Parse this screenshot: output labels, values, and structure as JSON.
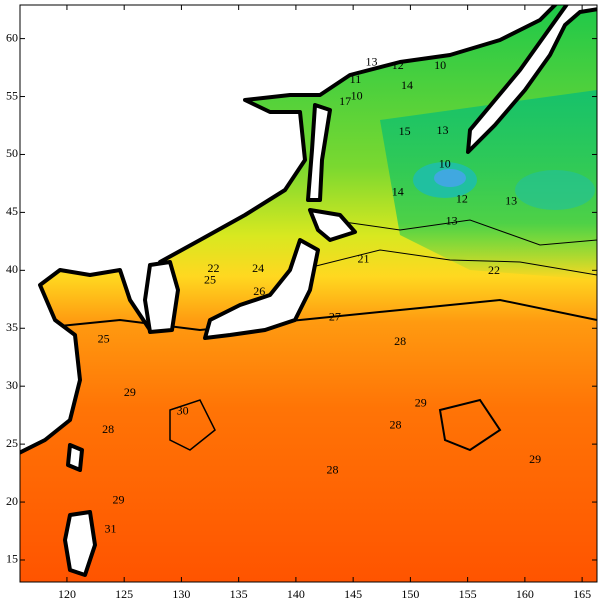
{
  "map": {
    "xlim": [
      115.9,
      166.3
    ],
    "ylim": [
      13.1,
      62.9
    ],
    "xticks": [
      120,
      125,
      130,
      135,
      140,
      145,
      150,
      155,
      160,
      165
    ],
    "yticks": [
      15,
      20,
      25,
      30,
      35,
      40,
      45,
      50,
      55,
      60
    ],
    "contour_labels": [
      {
        "value": 13,
        "lon": 146.6,
        "lat": 57.9
      },
      {
        "value": 12,
        "lon": 148.9,
        "lat": 57.6
      },
      {
        "value": 10,
        "lon": 152.6,
        "lat": 57.6
      },
      {
        "value": 11,
        "lon": 145.2,
        "lat": 56.4
      },
      {
        "value": 10,
        "lon": 145.3,
        "lat": 55.0
      },
      {
        "value": 14,
        "lon": 149.7,
        "lat": 55.9
      },
      {
        "value": 17,
        "lon": 144.3,
        "lat": 54.5
      },
      {
        "value": 15,
        "lon": 149.5,
        "lat": 51.9
      },
      {
        "value": 13,
        "lon": 152.8,
        "lat": 52.0
      },
      {
        "value": 10,
        "lon": 153.0,
        "lat": 49.1
      },
      {
        "value": 12,
        "lon": 154.5,
        "lat": 46.1
      },
      {
        "value": 13,
        "lon": 158.8,
        "lat": 45.9
      },
      {
        "value": 14,
        "lon": 148.9,
        "lat": 46.7
      },
      {
        "value": 13,
        "lon": 153.6,
        "lat": 44.2
      },
      {
        "value": 22,
        "lon": 132.8,
        "lat": 40.1
      },
      {
        "value": 24,
        "lon": 136.7,
        "lat": 40.1
      },
      {
        "value": 25,
        "lon": 132.5,
        "lat": 39.1
      },
      {
        "value": 26,
        "lon": 136.8,
        "lat": 38.1
      },
      {
        "value": 21,
        "lon": 145.9,
        "lat": 40.9
      },
      {
        "value": 22,
        "lon": 157.3,
        "lat": 39.9
      },
      {
        "value": 27,
        "lon": 143.4,
        "lat": 35.9
      },
      {
        "value": 28,
        "lon": 149.1,
        "lat": 33.8
      },
      {
        "value": 25,
        "lon": 123.2,
        "lat": 34.0
      },
      {
        "value": 29,
        "lon": 125.5,
        "lat": 29.4
      },
      {
        "value": 28,
        "lon": 123.6,
        "lat": 26.2
      },
      {
        "value": 30,
        "lon": 130.1,
        "lat": 27.8
      },
      {
        "value": 29,
        "lon": 150.9,
        "lat": 28.5
      },
      {
        "value": 28,
        "lon": 148.7,
        "lat": 26.6
      },
      {
        "value": 29,
        "lon": 160.9,
        "lat": 23.6
      },
      {
        "value": 28,
        "lon": 143.2,
        "lat": 22.7
      },
      {
        "value": 29,
        "lon": 124.5,
        "lat": 20.1
      },
      {
        "value": 31,
        "lon": 123.8,
        "lat": 17.6
      }
    ]
  }
}
